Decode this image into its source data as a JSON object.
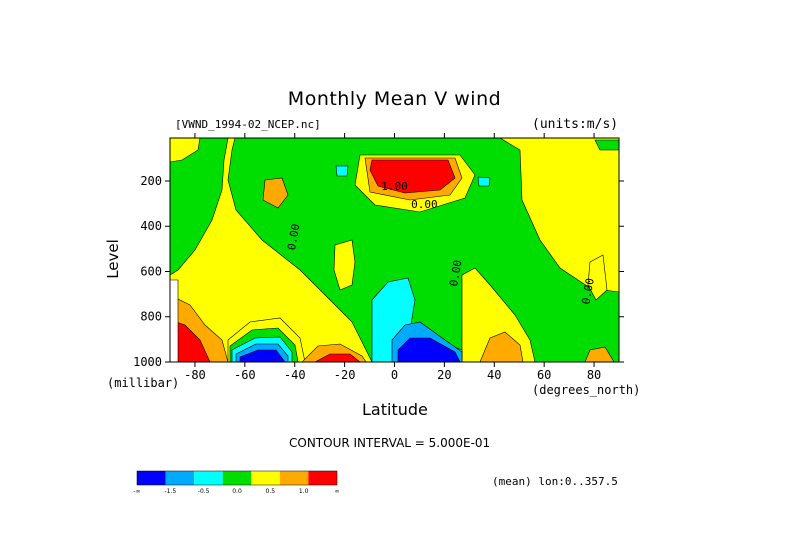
{
  "title": "Monthly Mean V wind",
  "dataset": "[VWND_1994-02_NCEP.nc]",
  "units_label": "(units:m/s)",
  "x_unit": "(degrees_north)",
  "y_unit": "(millibar)",
  "contour_interval": "CONTOUR INTERVAL = 5.000E-01",
  "mean_label": "(mean) lon:0..357.5",
  "chart_data": {
    "type": "heatmap",
    "title": "Monthly Mean V wind",
    "xlabel": "Latitude",
    "ylabel": "Level",
    "xlim": [
      -90,
      90
    ],
    "ylim": [
      1000,
      10
    ],
    "x_ticks": [
      -80,
      -60,
      -40,
      -20,
      0,
      20,
      40,
      60,
      80
    ],
    "x_tick_labels": [
      "-80",
      "-60",
      "-40",
      "-20",
      "0",
      "20",
      "40",
      "60",
      "80"
    ],
    "y_ticks": [
      200,
      400,
      600,
      800,
      1000
    ],
    "y_tick_labels": [
      "200",
      "400",
      "600",
      "800",
      "1000"
    ],
    "contour_labels": [
      {
        "text": "1.00",
        "lat": 0,
        "level": 240
      },
      {
        "text": "0.00",
        "lat": 12,
        "level": 320
      },
      {
        "text": "0.00",
        "lat": -39,
        "level": 450
      },
      {
        "text": "0.00",
        "lat": 26,
        "level": 610
      },
      {
        "text": "0.00",
        "lat": 79,
        "level": 690
      }
    ],
    "legend": {
      "colors": [
        "#0000ff",
        "#00aaff",
        "#00ffff",
        "#00dd00",
        "#ffff00",
        "#ffaa00",
        "#ff0000"
      ],
      "labels": [
        "-∞",
        "-1.5",
        "-0.5",
        "0.0",
        "0.5",
        "1.0",
        "∞"
      ]
    },
    "regions": [
      {
        "level_value": 0.25,
        "color": "#00dd00",
        "shape": "background"
      },
      {
        "level_value": 0.75,
        "color": "#ffff00",
        "lat": -48,
        "level": 500,
        "description": "southern tropics positive"
      },
      {
        "level_value": 0.75,
        "color": "#ffff00",
        "lat": 70,
        "level": 300,
        "description": "northern high latitudes positive"
      },
      {
        "level_value": 1.75,
        "color": "#ff0000",
        "lat": 12,
        "level": 180,
        "description": "upper-level maximum"
      },
      {
        "level_value": -1.75,
        "color": "#0000ff",
        "lat": 12,
        "level": 970,
        "description": "near-surface minimum"
      },
      {
        "level_value": -1.75,
        "color": "#0000ff",
        "lat": -55,
        "level": 980,
        "description": "southern near-surface minimum"
      },
      {
        "level_value": 1.25,
        "color": "#ffaa00",
        "lat": -25,
        "level": 980
      },
      {
        "level_value": 1.25,
        "color": "#ffaa00",
        "lat": 45,
        "level": 970
      },
      {
        "level_value": 1.25,
        "color": "#ffaa00",
        "lat": 85,
        "level": 980
      }
    ]
  }
}
